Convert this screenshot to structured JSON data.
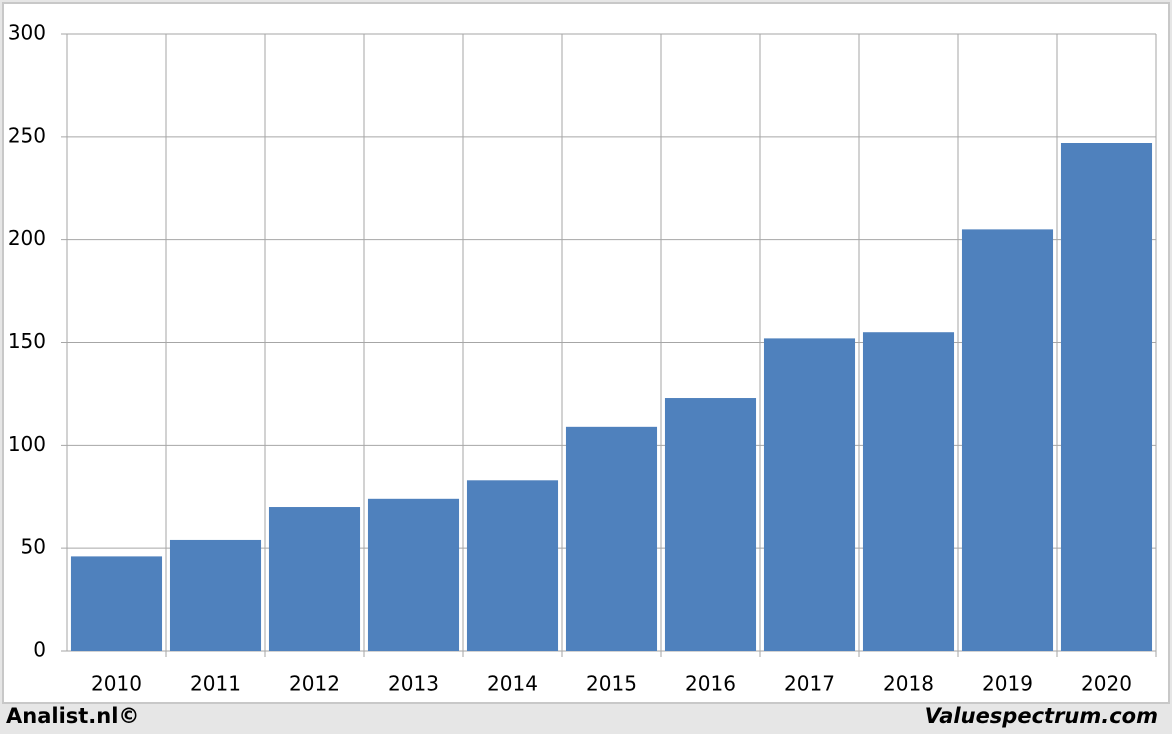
{
  "chart_data": {
    "type": "bar",
    "categories": [
      "2010",
      "2011",
      "2012",
      "2013",
      "2014",
      "2015",
      "2016",
      "2017",
      "2018",
      "2019",
      "2020"
    ],
    "values": [
      46,
      54,
      70,
      74,
      83,
      109,
      123,
      152,
      155,
      205,
      247
    ],
    "color": "#4f81bd",
    "ylim": [
      0,
      300
    ],
    "yticks": [
      0,
      50,
      100,
      150,
      200,
      250,
      300
    ],
    "grid": true
  },
  "credits": {
    "left": "Analist.nl©",
    "right": "Valuespectrum.com"
  }
}
